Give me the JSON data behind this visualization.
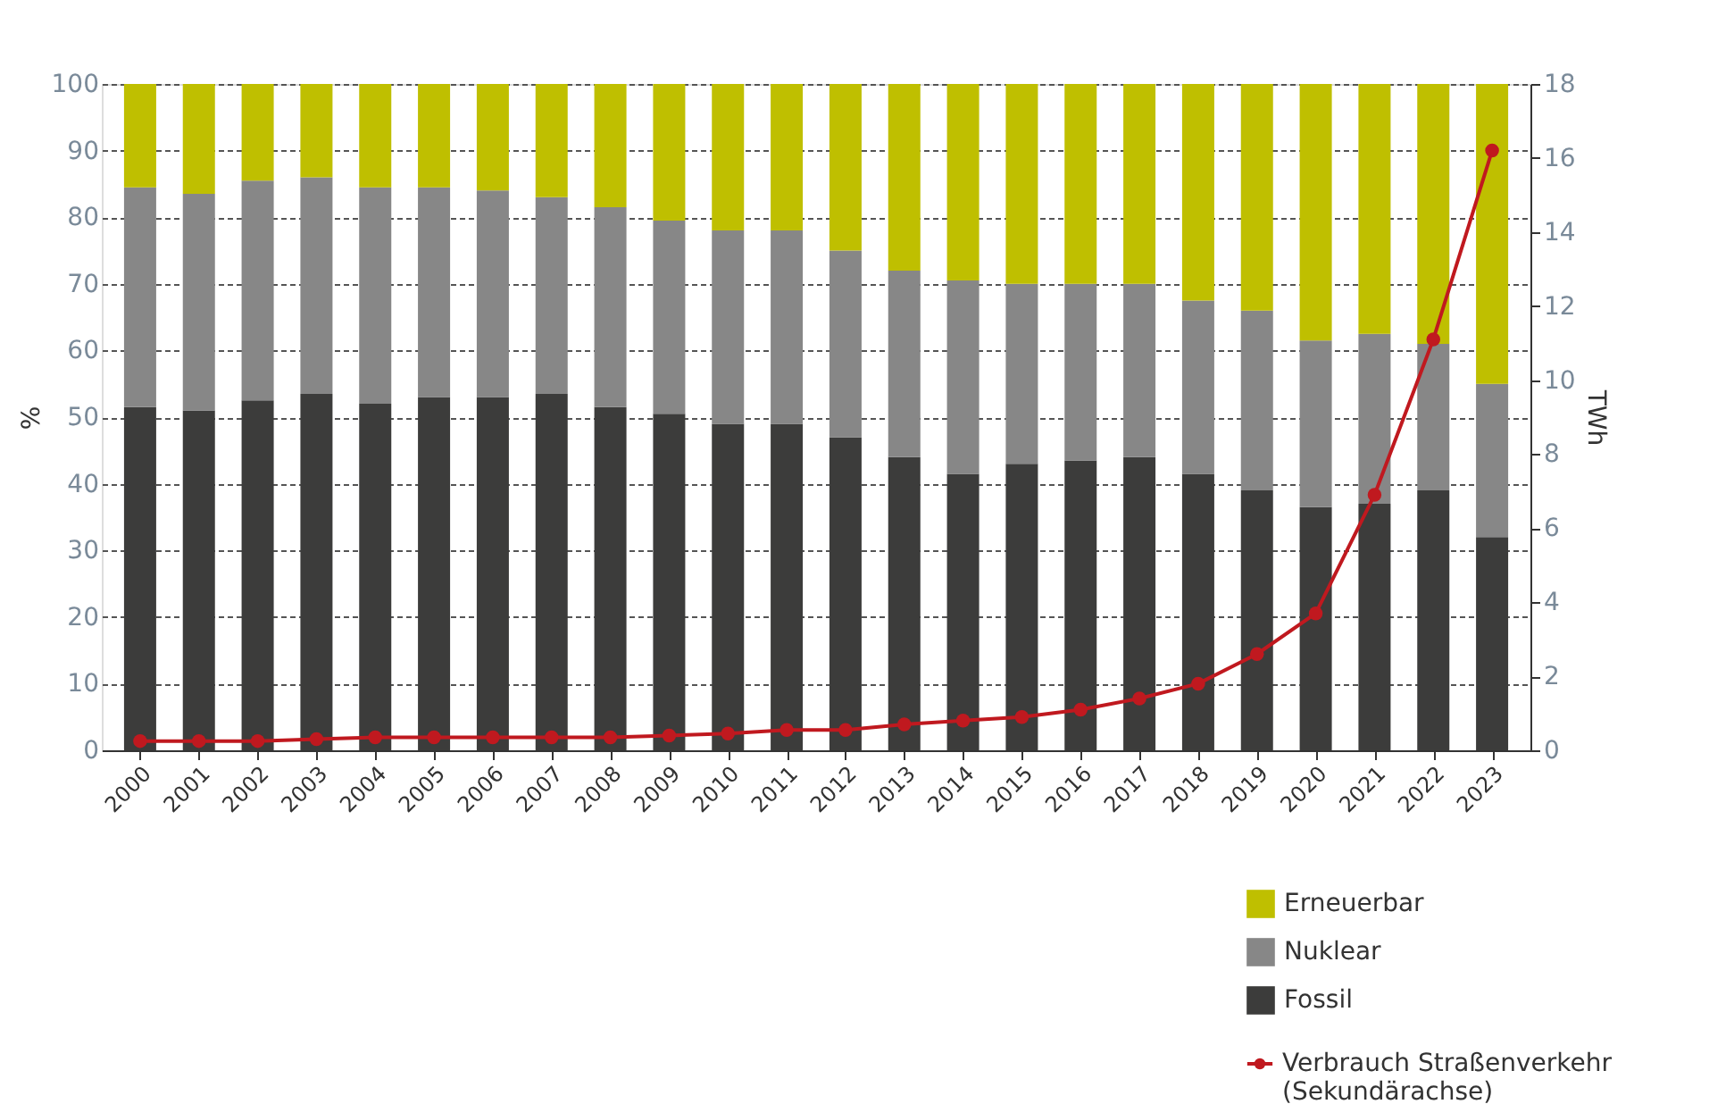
{
  "chart_data": {
    "type": "bar",
    "stacked": true,
    "ylabel": "%",
    "y2label": "TWh",
    "categories": [
      "2000",
      "2001",
      "2002",
      "2003",
      "2004",
      "2005",
      "2006",
      "2007",
      "2008",
      "2009",
      "2010",
      "2011",
      "2012",
      "2013",
      "2014",
      "2015",
      "2016",
      "2017",
      "2018",
      "2019",
      "2020",
      "2021",
      "2022",
      "2023"
    ],
    "series": [
      {
        "name": "Fossil",
        "color": "#3c3c3b",
        "values": [
          51.5,
          51,
          52.5,
          53.5,
          52,
          53,
          53,
          53.5,
          51.5,
          50.5,
          49,
          49,
          47,
          44,
          41.5,
          43,
          43.5,
          44,
          41.5,
          39,
          36.5,
          37,
          39,
          32
        ]
      },
      {
        "name": "Nuklear",
        "color": "#878787",
        "values": [
          33,
          32.5,
          33,
          32.5,
          32.5,
          31.5,
          31,
          29.5,
          30,
          29,
          29,
          29,
          28,
          28,
          29,
          27,
          26.5,
          26,
          26,
          27,
          25,
          25.5,
          22,
          23
        ]
      },
      {
        "name": "Erneuerbar",
        "color": "#bfbf00",
        "values": [
          15.5,
          16.5,
          14.5,
          14,
          15.5,
          15.5,
          16,
          17,
          18.5,
          20.5,
          22,
          22,
          25,
          28,
          29.5,
          30,
          30,
          30,
          32.5,
          34,
          38.5,
          37.5,
          39,
          45
        ]
      },
      {
        "name": "Verbrauch Straßenverkehr (Sekundärachse)",
        "type": "line",
        "axis": "y2",
        "color": "#c0191f",
        "marker": "circle",
        "line_style": "solid",
        "values": [
          0.25,
          0.25,
          0.25,
          0.3,
          0.35,
          0.35,
          0.35,
          0.35,
          0.35,
          0.4,
          0.45,
          0.55,
          0.55,
          0.7,
          0.8,
          0.9,
          1.1,
          1.4,
          1.8,
          2.6,
          3.7,
          6.9,
          11.1,
          16.2
        ]
      }
    ],
    "ylim": [
      0,
      100
    ],
    "yticks": [
      0,
      10,
      20,
      30,
      40,
      50,
      60,
      70,
      80,
      90,
      100
    ],
    "y2lim": [
      0,
      18
    ],
    "y2ticks": [
      0,
      2,
      4,
      6,
      8,
      10,
      12,
      14,
      16,
      18
    ],
    "grid": "y",
    "legend": "bottom right"
  }
}
